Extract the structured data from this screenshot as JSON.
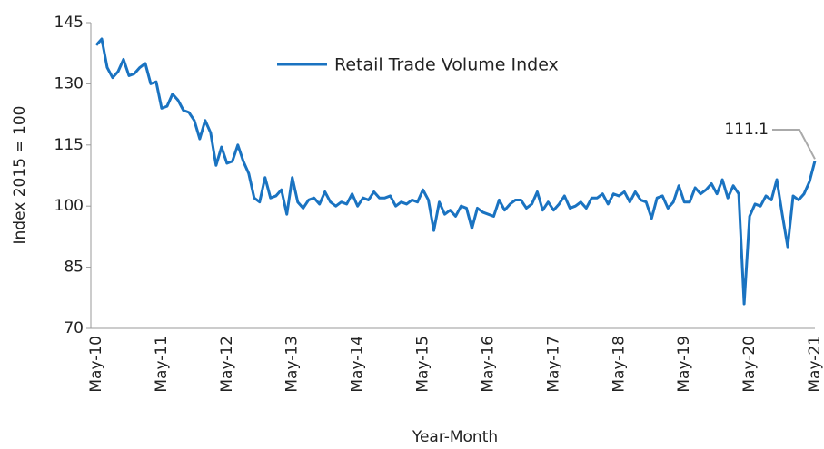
{
  "chart_data": {
    "type": "line",
    "ylabel": "Index 2015 = 100",
    "xlabel": "Year-Month",
    "annotation": "111.1",
    "categories": [
      "May-10",
      null,
      null,
      null,
      null,
      null,
      null,
      null,
      null,
      null,
      null,
      null,
      "May-11",
      null,
      null,
      null,
      null,
      null,
      null,
      null,
      null,
      null,
      null,
      null,
      "May-12",
      null,
      null,
      null,
      null,
      null,
      null,
      null,
      null,
      null,
      null,
      null,
      "May-13",
      null,
      null,
      null,
      null,
      null,
      null,
      null,
      null,
      null,
      null,
      null,
      "May-14",
      null,
      null,
      null,
      null,
      null,
      null,
      null,
      null,
      null,
      null,
      null,
      "May-15",
      null,
      null,
      null,
      null,
      null,
      null,
      null,
      null,
      null,
      null,
      null,
      "May-16",
      null,
      null,
      null,
      null,
      null,
      null,
      null,
      null,
      null,
      null,
      null,
      "May-17",
      null,
      null,
      null,
      null,
      null,
      null,
      null,
      null,
      null,
      null,
      null,
      "May-18",
      null,
      null,
      null,
      null,
      null,
      null,
      null,
      null,
      null,
      null,
      null,
      "May-19",
      null,
      null,
      null,
      null,
      null,
      null,
      null,
      null,
      null,
      null,
      null,
      "May-20",
      null,
      null,
      null,
      null,
      null,
      null,
      null,
      null,
      null,
      null,
      null,
      "May-21"
    ],
    "series": [
      {
        "name": "Retail Trade Volume Index",
        "color": "#1a73c1",
        "values": [
          139.5,
          141,
          134,
          131.5,
          133,
          136,
          132,
          132.5,
          134,
          135,
          130,
          130.5,
          124,
          124.5,
          127.5,
          126,
          123.5,
          123,
          121,
          116.5,
          121,
          118,
          110,
          114.5,
          110.5,
          111,
          115,
          111,
          108,
          102,
          101,
          107,
          102,
          102.5,
          104,
          98,
          107,
          101,
          99.5,
          101.5,
          102,
          100.5,
          103.5,
          101,
          100,
          101,
          100.5,
          103,
          100,
          102,
          101.5,
          103.5,
          102,
          102,
          102.5,
          100,
          101,
          100.5,
          101.5,
          101,
          104,
          101.5,
          94,
          101,
          98,
          99,
          97.5,
          100,
          99.5,
          94.5,
          99.5,
          98.5,
          98,
          97.5,
          101.5,
          99,
          100.5,
          101.5,
          101.5,
          99.5,
          100.5,
          103.5,
          99,
          101,
          99,
          100.5,
          102.5,
          99.5,
          100,
          101,
          99.5,
          102,
          102,
          103,
          100.5,
          103,
          102.5,
          103.5,
          101,
          103.5,
          101.5,
          101,
          97,
          102,
          102.5,
          99.5,
          101,
          105,
          101,
          101,
          104.5,
          103,
          104,
          105.5,
          103,
          106.5,
          102,
          105,
          103,
          76,
          97.5,
          100.5,
          100,
          102.5,
          101.5,
          106.5,
          98,
          90,
          102.5,
          101.5,
          103,
          106,
          111.1
        ]
      }
    ],
    "ylim": [
      70,
      145
    ],
    "yticks": [
      70,
      85,
      100,
      115,
      130,
      145
    ]
  }
}
